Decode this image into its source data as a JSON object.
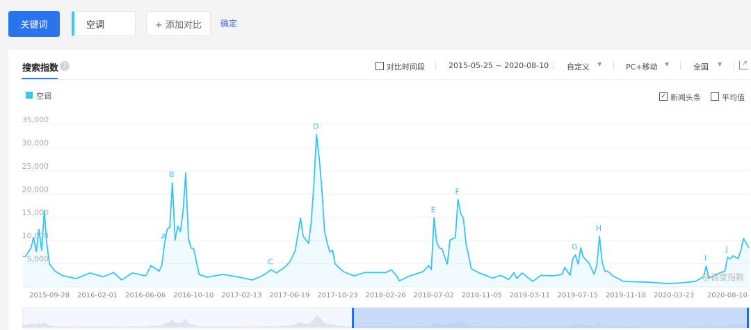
{
  "toolbar": {
    "keyword_button": "关键词",
    "keyword": "空调",
    "add_compare": "+ 添加对比",
    "confirm": "确定"
  },
  "card": {
    "tab": "搜索指数",
    "help_icon": "?",
    "compare_period": "对比时间段",
    "date_range": "2015-05-25 ~ 2020-08-10",
    "range_mode": "自定义",
    "device": "PC+移动",
    "region": "全国",
    "news_checkbox": {
      "label": "新闻头条",
      "checked": true
    },
    "avg_checkbox": {
      "label": "平均值",
      "checked": false
    },
    "watermark": "@百度指数"
  },
  "colors": {
    "accent": "#2a74ed",
    "series": "#35c6f4",
    "link": "#4c6ff0"
  },
  "chart_data": {
    "type": "area",
    "title": "",
    "xlabel": "",
    "ylabel": "",
    "ylim": [
      0,
      35000
    ],
    "yticks": [
      "5,000",
      "10,000",
      "15,000",
      "20,000",
      "25,000",
      "30,000",
      "35,000"
    ],
    "ytick_values": [
      5000,
      10000,
      15000,
      20000,
      25000,
      30000,
      35000
    ],
    "xticks": [
      "2015-09-28",
      "2016-02-01",
      "2016-06-06",
      "2016-10-10",
      "2017-02-13",
      "2017-06-19",
      "2017-10-23",
      "2018-02-26",
      "2018-07-02",
      "2018-11-05",
      "2019-03-11",
      "2019-07-15",
      "2019-11-18",
      "2020-03-23",
      "2020-08-10"
    ],
    "xlim": [
      "2015-05-25",
      "2020-08-10"
    ],
    "grid": true,
    "legend": {
      "position": "top-left",
      "entries": [
        "空调"
      ]
    },
    "series": [
      {
        "name": "空调",
        "points": [
          [
            "2015-05-25",
            6600
          ],
          [
            "2015-06-01",
            6600
          ],
          [
            "2015-06-08",
            7500
          ],
          [
            "2015-06-15",
            8400
          ],
          [
            "2015-06-22",
            10600
          ],
          [
            "2015-06-29",
            7600
          ],
          [
            "2015-07-06",
            12400
          ],
          [
            "2015-07-13",
            7900
          ],
          [
            "2015-07-20",
            16400
          ],
          [
            "2015-07-27",
            9000
          ],
          [
            "2015-08-03",
            4900
          ],
          [
            "2015-08-17",
            3400
          ],
          [
            "2015-09-07",
            2400
          ],
          [
            "2015-10-12",
            1800
          ],
          [
            "2015-11-16",
            3000
          ],
          [
            "2015-12-21",
            2200
          ],
          [
            "2016-01-18",
            3100
          ],
          [
            "2016-02-08",
            1500
          ],
          [
            "2016-03-07",
            3000
          ],
          [
            "2016-04-11",
            2400
          ],
          [
            "2016-04-25",
            4600
          ],
          [
            "2016-05-16",
            3400
          ],
          [
            "2016-05-23",
            4600
          ],
          [
            "2016-05-30",
            9100
          ],
          [
            "2016-06-06",
            12400
          ],
          [
            "2016-06-13",
            12900
          ],
          [
            "2016-06-20",
            22400
          ],
          [
            "2016-06-27",
            10100
          ],
          [
            "2016-07-04",
            13100
          ],
          [
            "2016-07-11",
            11900
          ],
          [
            "2016-07-18",
            16400
          ],
          [
            "2016-07-25",
            24600
          ],
          [
            "2016-08-01",
            10400
          ],
          [
            "2016-08-08",
            8400
          ],
          [
            "2016-08-15",
            8200
          ],
          [
            "2016-08-22",
            5400
          ],
          [
            "2016-08-29",
            2700
          ],
          [
            "2016-09-19",
            2100
          ],
          [
            "2016-10-31",
            2700
          ],
          [
            "2016-12-05",
            2200
          ],
          [
            "2017-01-16",
            1500
          ],
          [
            "2017-02-13",
            2500
          ],
          [
            "2017-03-06",
            3700
          ],
          [
            "2017-03-20",
            3000
          ],
          [
            "2017-04-10",
            4200
          ],
          [
            "2017-04-24",
            5400
          ],
          [
            "2017-05-08",
            7800
          ],
          [
            "2017-05-22",
            14800
          ],
          [
            "2017-05-29",
            10900
          ],
          [
            "2017-06-12",
            9400
          ],
          [
            "2017-06-19",
            13900
          ],
          [
            "2017-06-26",
            22100
          ],
          [
            "2017-07-03",
            32800
          ],
          [
            "2017-07-10",
            27800
          ],
          [
            "2017-07-17",
            21000
          ],
          [
            "2017-07-24",
            12100
          ],
          [
            "2017-07-31",
            9400
          ],
          [
            "2017-08-07",
            7500
          ],
          [
            "2017-08-14",
            7900
          ],
          [
            "2017-08-21",
            4900
          ],
          [
            "2017-09-11",
            3300
          ],
          [
            "2017-10-09",
            2400
          ],
          [
            "2017-11-06",
            3100
          ],
          [
            "2017-12-04",
            3100
          ],
          [
            "2018-01-01",
            3100
          ],
          [
            "2018-01-15",
            3700
          ],
          [
            "2018-01-29",
            2400
          ],
          [
            "2018-02-05",
            1300
          ],
          [
            "2018-03-05",
            2400
          ],
          [
            "2018-04-09",
            3300
          ],
          [
            "2018-04-23",
            4600
          ],
          [
            "2018-04-30",
            3700
          ],
          [
            "2018-05-07",
            14900
          ],
          [
            "2018-05-14",
            9700
          ],
          [
            "2018-05-21",
            8400
          ],
          [
            "2018-05-28",
            8200
          ],
          [
            "2018-06-04",
            6500
          ],
          [
            "2018-06-11",
            4900
          ],
          [
            "2018-06-18",
            10100
          ],
          [
            "2018-07-02",
            10600
          ],
          [
            "2018-07-09",
            18800
          ],
          [
            "2018-07-16",
            15700
          ],
          [
            "2018-07-23",
            14900
          ],
          [
            "2018-07-30",
            9400
          ],
          [
            "2018-08-13",
            3900
          ],
          [
            "2018-09-03",
            3000
          ],
          [
            "2018-10-08",
            1900
          ],
          [
            "2018-10-29",
            2500
          ],
          [
            "2018-11-19",
            1600
          ],
          [
            "2018-12-03",
            3100
          ],
          [
            "2018-12-10",
            1800
          ],
          [
            "2018-12-24",
            3000
          ],
          [
            "2019-01-21",
            1200
          ],
          [
            "2019-02-11",
            2500
          ],
          [
            "2019-03-18",
            2400
          ],
          [
            "2019-04-08",
            2700
          ],
          [
            "2019-04-15",
            4200
          ],
          [
            "2019-04-29",
            2500
          ],
          [
            "2019-05-06",
            6000
          ],
          [
            "2019-05-13",
            6900
          ],
          [
            "2019-05-20",
            4900
          ],
          [
            "2019-05-27",
            8400
          ],
          [
            "2019-06-03",
            6400
          ],
          [
            "2019-06-17",
            5200
          ],
          [
            "2019-07-01",
            2700
          ],
          [
            "2019-07-08",
            4600
          ],
          [
            "2019-07-15",
            10900
          ],
          [
            "2019-07-22",
            5400
          ],
          [
            "2019-07-29",
            3400
          ],
          [
            "2019-08-05",
            3400
          ],
          [
            "2019-08-19",
            2400
          ],
          [
            "2019-09-16",
            1200
          ],
          [
            "2019-11-25",
            1000
          ],
          [
            "2020-01-13",
            700
          ],
          [
            "2020-02-17",
            900
          ],
          [
            "2020-03-23",
            1200
          ],
          [
            "2020-04-13",
            2200
          ],
          [
            "2020-04-20",
            4500
          ],
          [
            "2020-04-27",
            1900
          ],
          [
            "2020-05-25",
            3000
          ],
          [
            "2020-06-08",
            3400
          ],
          [
            "2020-06-15",
            6400
          ],
          [
            "2020-06-22",
            6000
          ],
          [
            "2020-06-29",
            6700
          ],
          [
            "2020-07-13",
            6100
          ],
          [
            "2020-07-20",
            7900
          ],
          [
            "2020-07-27",
            10400
          ],
          [
            "2020-08-10",
            8400
          ]
        ]
      }
    ],
    "annotations": [
      {
        "label": "A",
        "date": "2016-05-30"
      },
      {
        "label": "B",
        "date": "2016-06-20"
      },
      {
        "label": "C",
        "date": "2017-03-06"
      },
      {
        "label": "D",
        "date": "2017-07-03"
      },
      {
        "label": "E",
        "date": "2018-05-07"
      },
      {
        "label": "F",
        "date": "2018-07-09"
      },
      {
        "label": "G",
        "date": "2019-05-13"
      },
      {
        "label": "H",
        "date": "2019-07-15"
      },
      {
        "label": "I",
        "date": "2020-04-20"
      },
      {
        "label": "J",
        "date": "2020-06-15"
      }
    ]
  }
}
